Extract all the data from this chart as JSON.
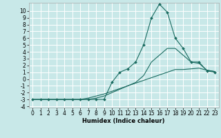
{
  "title": "",
  "xlabel": "Humidex (Indice chaleur)",
  "ylabel": "",
  "bg_color": "#c8e8e8",
  "grid_color": "#ffffff",
  "line_color": "#1a6b60",
  "xlim": [
    -0.5,
    23.5
  ],
  "ylim": [
    -4.2,
    11.2
  ],
  "xticks": [
    0,
    1,
    2,
    3,
    4,
    5,
    6,
    7,
    8,
    9,
    10,
    11,
    12,
    13,
    14,
    15,
    16,
    17,
    18,
    19,
    20,
    21,
    22,
    23
  ],
  "yticks": [
    -4,
    -3,
    -2,
    -1,
    0,
    1,
    2,
    3,
    4,
    5,
    6,
    7,
    8,
    9,
    10
  ],
  "x": [
    0,
    1,
    2,
    3,
    4,
    5,
    6,
    7,
    8,
    9,
    10,
    11,
    12,
    13,
    14,
    15,
    16,
    17,
    18,
    19,
    20,
    21,
    22,
    23
  ],
  "line1": [
    -3,
    -3,
    -3,
    -3,
    -3,
    -3,
    -3,
    -3,
    -3,
    -3,
    -0.5,
    1,
    1.5,
    2.5,
    5,
    9,
    11,
    9.8,
    6,
    4.5,
    2.5,
    2.5,
    1.2,
    1.0
  ],
  "line2": [
    -3,
    -3,
    -3,
    -3,
    -3,
    -3,
    -3,
    -3,
    -2.8,
    -2.5,
    -2,
    -1.5,
    -1,
    -0.5,
    0.5,
    2.5,
    3.5,
    4.5,
    4.5,
    3.5,
    2.5,
    2.3,
    1.3,
    1.1
  ],
  "line3": [
    -3,
    -3,
    -3,
    -3,
    -3,
    -3,
    -3,
    -2.8,
    -2.5,
    -2.2,
    -1.8,
    -1.4,
    -1.0,
    -0.6,
    -0.2,
    0.2,
    0.6,
    1.0,
    1.4,
    1.4,
    1.5,
    1.6,
    1.3,
    1.1
  ],
  "tick_fontsize": 5.5,
  "xlabel_fontsize": 6.0
}
